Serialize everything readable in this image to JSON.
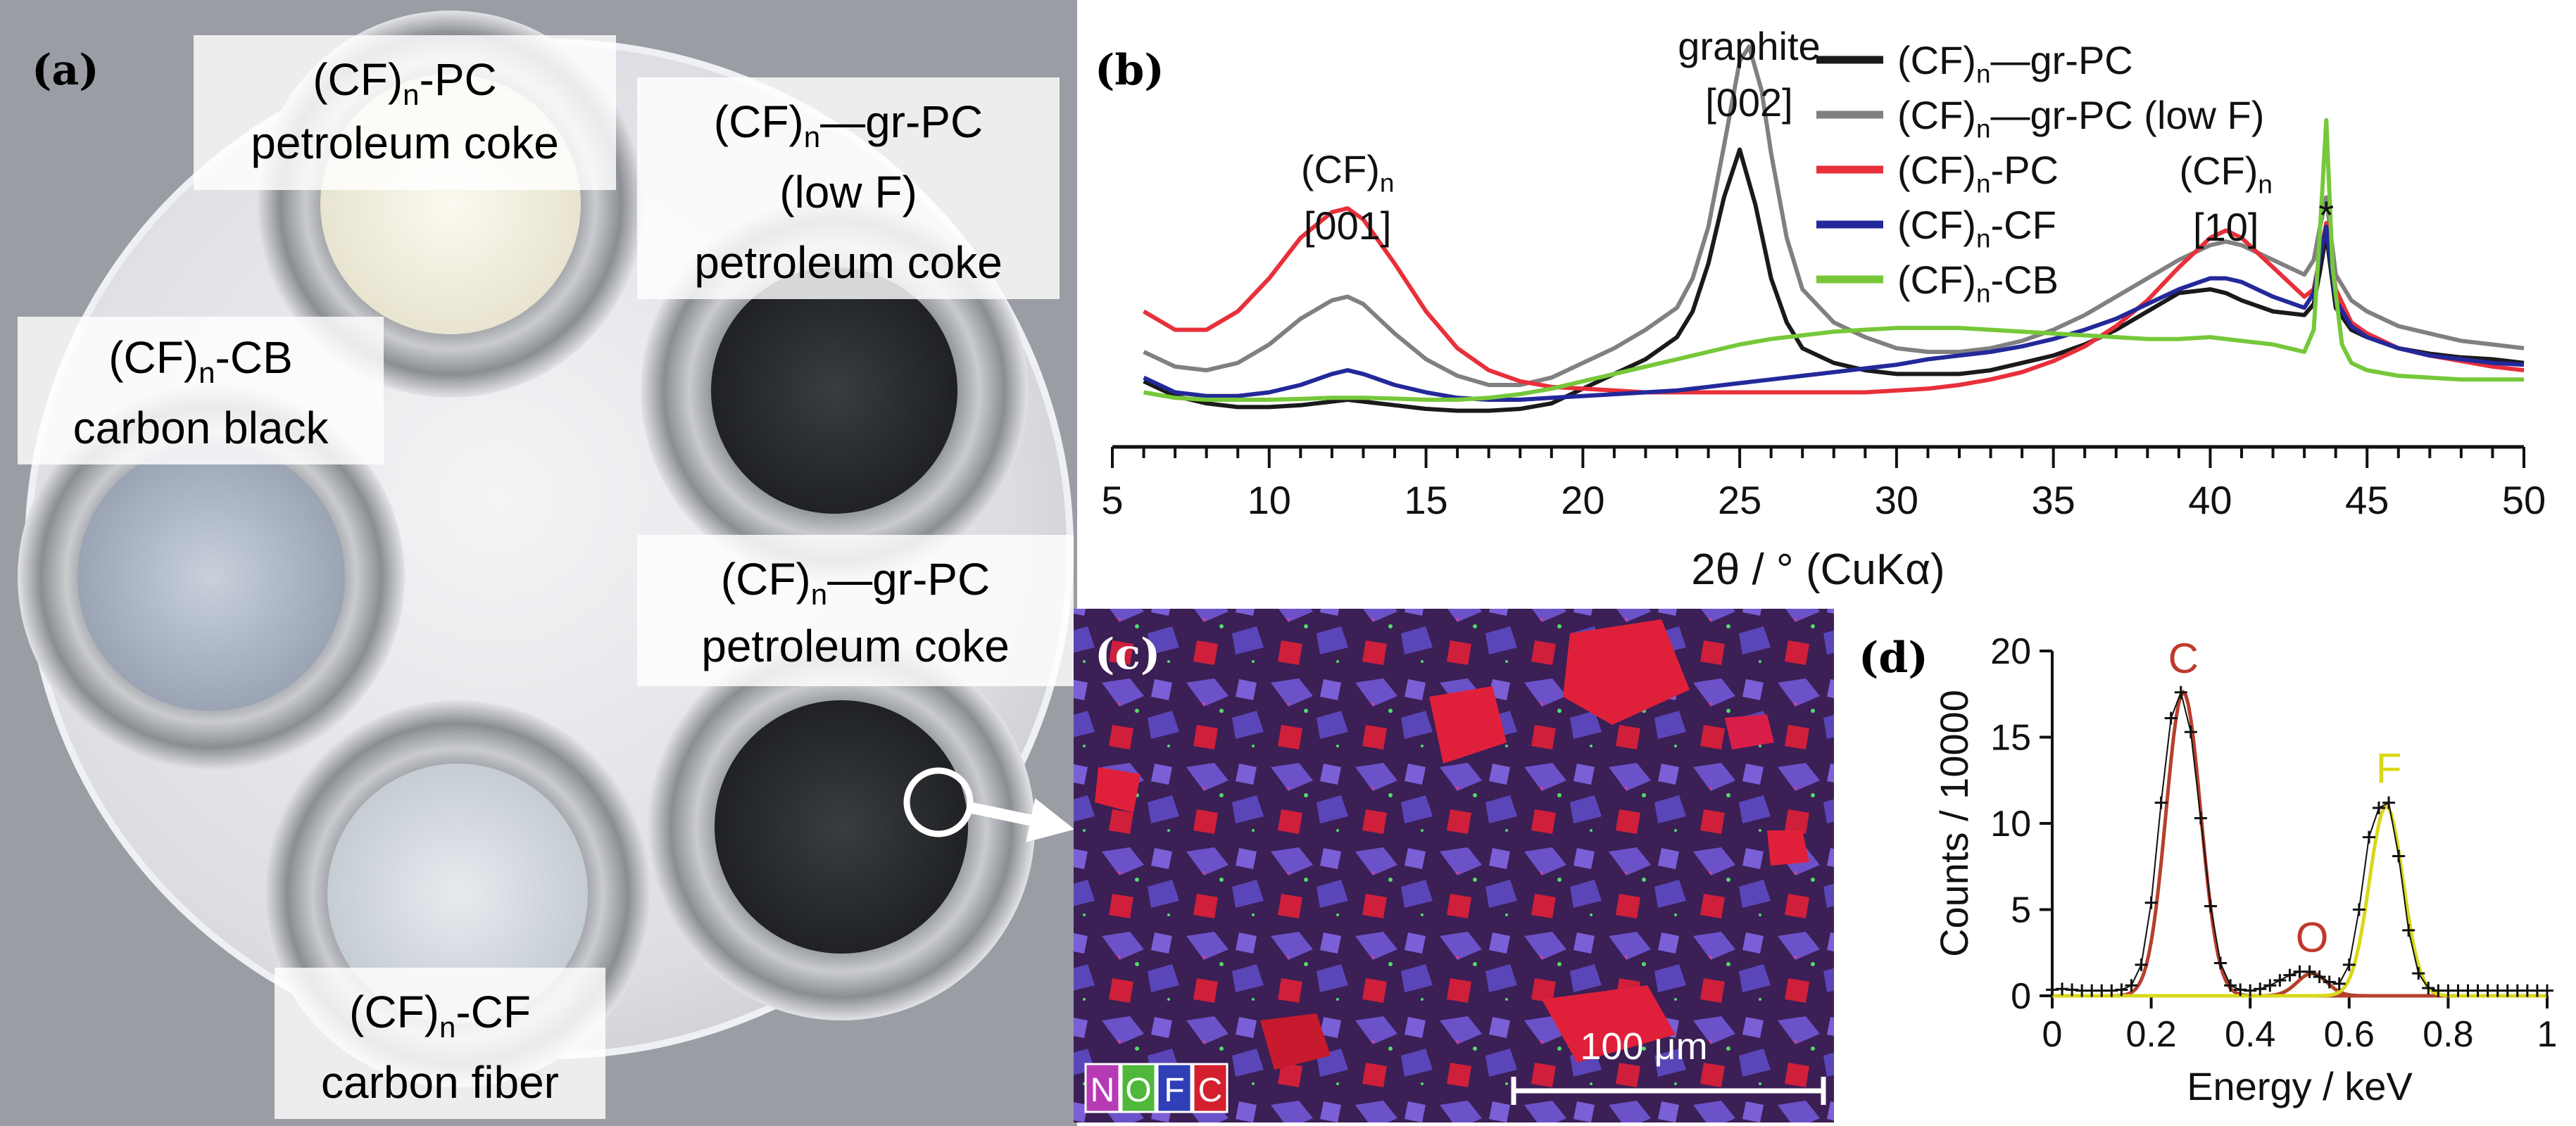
{
  "panels": {
    "a": {
      "letter": "(a)",
      "labels": [
        {
          "key": "pc",
          "formula": {
            "pre": "(CF)",
            "sub": "n",
            "post": "-PC"
          },
          "lines": [
            "petroleum coke"
          ]
        },
        {
          "key": "grlow",
          "formula": {
            "pre": "(CF)",
            "sub": "n",
            "post": "—gr-PC"
          },
          "lines": [
            "(low F)",
            "petroleum coke"
          ]
        },
        {
          "key": "cb",
          "formula": {
            "pre": "(CF)",
            "sub": "n",
            "post": "-CB"
          },
          "lines": [
            "carbon black"
          ]
        },
        {
          "key": "gr",
          "formula": {
            "pre": "(CF)",
            "sub": "n",
            "post": "—gr-PC"
          },
          "lines": [
            "petroleum coke"
          ]
        },
        {
          "key": "cf",
          "formula": {
            "pre": "(CF)",
            "sub": "n",
            "post": "-CF"
          },
          "lines": [
            "carbon fiber"
          ]
        }
      ]
    },
    "b": {
      "letter": "(b)"
    },
    "c": {
      "letter": "(c)",
      "scalebar": "100 μm",
      "elements": [
        "N",
        "O",
        "F",
        "C"
      ]
    },
    "d": {
      "letter": "(d)"
    }
  },
  "chart_data": [
    {
      "panel": "b",
      "type": "line",
      "xlabel": "2θ / ° (CuKα)",
      "ylabel": "",
      "xlim": [
        5,
        50
      ],
      "xticks": [
        5,
        10,
        15,
        20,
        25,
        30,
        35,
        40,
        45,
        50
      ],
      "yticks_shown": false,
      "legend_position": "top-right",
      "annotations": [
        {
          "text": "(CF)n [001]",
          "top": {
            "pre": "(CF)",
            "sub": "n"
          },
          "bottom": "[001]",
          "at_x": 12.5
        },
        {
          "text": "graphite [002]",
          "top": {
            "pre": "graphite",
            "sub": ""
          },
          "bottom": "[002]",
          "at_x": 25.3
        },
        {
          "text": "(CF)n [10]",
          "top": {
            "pre": "(CF)",
            "sub": "n"
          },
          "bottom": "[10]",
          "at_x": 40.5
        },
        {
          "text": "*",
          "top": {
            "pre": "*",
            "sub": ""
          },
          "bottom": "",
          "at_x": 43.7
        }
      ],
      "series": [
        {
          "name": "(CF)n—gr-PC",
          "legend": {
            "pre": "(CF)",
            "sub": "n",
            "post": "—gr-PC"
          },
          "color": "#1a1a1a",
          "x": [
            6,
            7,
            8,
            9,
            10,
            11,
            12,
            12.5,
            13,
            14,
            15,
            16,
            17,
            18,
            19,
            20,
            21,
            22,
            23,
            23.5,
            24,
            24.5,
            25,
            25.5,
            26,
            26.5,
            27,
            28,
            29,
            30,
            31,
            32,
            33,
            34,
            35,
            36,
            37,
            38,
            39,
            40,
            40.5,
            41,
            42,
            43,
            43.3,
            43.5,
            43.7,
            44,
            44.5,
            45,
            46,
            47,
            48,
            49,
            50
          ],
          "y": [
            1.4,
            1.0,
            0.8,
            0.7,
            0.7,
            0.75,
            0.85,
            0.9,
            0.85,
            0.75,
            0.65,
            0.6,
            0.6,
            0.65,
            0.8,
            1.2,
            1.6,
            2.0,
            2.6,
            3.3,
            4.6,
            6.4,
            7.7,
            6.2,
            4.2,
            3.0,
            2.3,
            1.9,
            1.7,
            1.6,
            1.6,
            1.6,
            1.7,
            1.9,
            2.1,
            2.4,
            2.8,
            3.3,
            3.8,
            3.9,
            3.8,
            3.6,
            3.3,
            3.2,
            3.5,
            4.4,
            5.4,
            3.4,
            2.8,
            2.6,
            2.3,
            2.15,
            2.05,
            2.0,
            1.9
          ]
        },
        {
          "name": "(CF)n—gr-PC (low F)",
          "legend": {
            "pre": "(CF)",
            "sub": "n",
            "post": "—gr-PC (low F)"
          },
          "color": "#808080",
          "x": [
            6,
            7,
            8,
            9,
            10,
            11,
            12,
            12.5,
            13,
            14,
            15,
            16,
            17,
            18,
            19,
            20,
            21,
            22,
            23,
            23.5,
            24,
            24.5,
            25,
            25.3,
            25.7,
            26,
            26.5,
            27,
            28,
            29,
            30,
            31,
            32,
            33,
            34,
            35,
            36,
            37,
            38,
            39,
            40,
            40.5,
            41,
            42,
            43,
            43.3,
            43.5,
            43.7,
            44,
            44.5,
            45,
            46,
            47,
            48,
            49,
            50
          ],
          "y": [
            2.2,
            1.8,
            1.7,
            1.9,
            2.4,
            3.1,
            3.6,
            3.7,
            3.5,
            2.7,
            2.0,
            1.55,
            1.3,
            1.3,
            1.5,
            1.9,
            2.3,
            2.8,
            3.4,
            4.2,
            5.6,
            7.8,
            10.1,
            10.5,
            9.3,
            7.6,
            5.3,
            3.9,
            3.0,
            2.6,
            2.3,
            2.2,
            2.2,
            2.3,
            2.5,
            2.8,
            3.2,
            3.7,
            4.2,
            4.7,
            5.1,
            5.2,
            5.1,
            4.7,
            4.3,
            4.7,
            5.6,
            6.4,
            4.3,
            3.6,
            3.3,
            2.9,
            2.7,
            2.5,
            2.4,
            2.3
          ]
        },
        {
          "name": "(CF)n-PC",
          "legend": {
            "pre": "(CF)",
            "sub": "n",
            "post": "-PC"
          },
          "color": "#e8303a",
          "x": [
            6,
            7,
            8,
            9,
            10,
            11,
            12,
            12.5,
            13,
            14,
            15,
            16,
            17,
            18,
            19,
            20,
            21,
            22,
            23,
            24,
            25,
            26,
            27,
            28,
            29,
            30,
            31,
            32,
            33,
            34,
            35,
            36,
            37,
            38,
            39,
            40,
            40.5,
            41,
            42,
            43,
            43.3,
            43.5,
            43.7,
            44,
            44.5,
            45,
            46,
            47,
            48,
            49,
            50
          ],
          "y": [
            3.3,
            2.8,
            2.8,
            3.3,
            4.2,
            5.3,
            6.0,
            6.1,
            5.8,
            4.6,
            3.3,
            2.3,
            1.7,
            1.4,
            1.25,
            1.2,
            1.15,
            1.1,
            1.1,
            1.1,
            1.1,
            1.1,
            1.1,
            1.1,
            1.1,
            1.15,
            1.2,
            1.3,
            1.45,
            1.65,
            1.95,
            2.35,
            2.9,
            3.6,
            4.5,
            5.3,
            5.5,
            5.3,
            4.5,
            3.7,
            3.9,
            4.8,
            5.7,
            3.9,
            3.0,
            2.7,
            2.3,
            2.1,
            1.95,
            1.8,
            1.7
          ]
        },
        {
          "name": "(CF)n-CF",
          "legend": {
            "pre": "(CF)",
            "sub": "n",
            "post": "-CF"
          },
          "color": "#23289a",
          "x": [
            6,
            7,
            8,
            9,
            10,
            11,
            12,
            12.5,
            13,
            14,
            15,
            16,
            17,
            18,
            19,
            20,
            21,
            22,
            23,
            24,
            25,
            26,
            27,
            28,
            29,
            30,
            31,
            32,
            33,
            34,
            35,
            36,
            37,
            38,
            39,
            40,
            40.5,
            41,
            42,
            43,
            43.3,
            43.5,
            43.7,
            44,
            44.5,
            45,
            46,
            47,
            48,
            49,
            50
          ],
          "y": [
            1.5,
            1.1,
            1.0,
            1.0,
            1.1,
            1.3,
            1.6,
            1.7,
            1.6,
            1.3,
            1.1,
            0.95,
            0.9,
            0.9,
            0.95,
            1.0,
            1.05,
            1.1,
            1.15,
            1.25,
            1.35,
            1.45,
            1.55,
            1.65,
            1.75,
            1.85,
            2.0,
            2.1,
            2.2,
            2.35,
            2.55,
            2.8,
            3.1,
            3.5,
            3.9,
            4.2,
            4.2,
            4.1,
            3.7,
            3.4,
            3.8,
            4.8,
            5.6,
            3.6,
            2.9,
            2.6,
            2.3,
            2.1,
            2.0,
            1.9,
            1.85
          ]
        },
        {
          "name": "(CF)n-CB",
          "legend": {
            "pre": "(CF)",
            "sub": "n",
            "post": "-CB"
          },
          "color": "#76c83a",
          "x": [
            6,
            7,
            8,
            9,
            10,
            11,
            12,
            13,
            14,
            15,
            16,
            17,
            18,
            19,
            20,
            21,
            22,
            23,
            24,
            25,
            26,
            27,
            28,
            29,
            30,
            31,
            32,
            33,
            34,
            35,
            36,
            37,
            38,
            39,
            40,
            41,
            42,
            43,
            43.3,
            43.5,
            43.7,
            43.9,
            44.2,
            44.5,
            45,
            46,
            47,
            48,
            49,
            50
          ],
          "y": [
            1.1,
            0.95,
            0.9,
            0.9,
            0.9,
            0.92,
            0.95,
            0.95,
            0.93,
            0.9,
            0.9,
            0.95,
            1.05,
            1.2,
            1.4,
            1.6,
            1.8,
            2.0,
            2.2,
            2.4,
            2.55,
            2.65,
            2.75,
            2.8,
            2.85,
            2.85,
            2.85,
            2.8,
            2.75,
            2.7,
            2.65,
            2.6,
            2.55,
            2.55,
            2.6,
            2.5,
            2.4,
            2.2,
            2.8,
            5.5,
            8.5,
            4.5,
            2.4,
            1.9,
            1.7,
            1.55,
            1.5,
            1.45,
            1.45,
            1.45
          ]
        }
      ]
    },
    {
      "panel": "d",
      "type": "line",
      "xlabel": "Energy / keV",
      "ylabel": "Counts / 10000",
      "xlim": [
        0,
        1
      ],
      "ylim": [
        0,
        20
      ],
      "xticks": [
        0,
        0.2,
        0.4,
        0.6,
        0.8,
        1
      ],
      "yticks": [
        0,
        5,
        10,
        15,
        20
      ],
      "peak_labels": [
        {
          "text": "C",
          "x": 0.265,
          "y": 17.6,
          "color": "#c0392b"
        },
        {
          "text": "O",
          "x": 0.525,
          "y": 1.4,
          "color": "#c0392b"
        },
        {
          "text": "F",
          "x": 0.68,
          "y": 11.2,
          "color": "#d8d81a"
        }
      ],
      "series": [
        {
          "name": "",
          "role": "measured spectrum",
          "style": "cross markers",
          "color": "#111111",
          "x": [
            0,
            0.02,
            0.04,
            0.06,
            0.08,
            0.1,
            0.12,
            0.14,
            0.16,
            0.18,
            0.2,
            0.22,
            0.24,
            0.26,
            0.28,
            0.3,
            0.32,
            0.34,
            0.36,
            0.38,
            0.4,
            0.42,
            0.44,
            0.46,
            0.48,
            0.5,
            0.52,
            0.54,
            0.56,
            0.58,
            0.6,
            0.62,
            0.64,
            0.66,
            0.68,
            0.7,
            0.72,
            0.74,
            0.76,
            0.78,
            0.8,
            0.82,
            0.84,
            0.86,
            0.88,
            0.9,
            0.92,
            0.94,
            0.96,
            0.98,
            1.0
          ],
          "y": [
            0.35,
            0.4,
            0.35,
            0.3,
            0.3,
            0.3,
            0.3,
            0.35,
            0.6,
            1.8,
            5.4,
            11.2,
            16.1,
            17.6,
            15.3,
            10.3,
            5.2,
            1.9,
            0.6,
            0.35,
            0.3,
            0.4,
            0.6,
            0.9,
            1.2,
            1.4,
            1.4,
            1.1,
            0.8,
            0.7,
            1.8,
            5.0,
            9.2,
            10.9,
            11.2,
            8.1,
            3.8,
            1.3,
            0.45,
            0.3,
            0.3,
            0.3,
            0.3,
            0.3,
            0.3,
            0.3,
            0.3,
            0.3,
            0.3,
            0.3,
            0.3
          ]
        },
        {
          "name": "",
          "role": "C fit",
          "color": "#b5402d",
          "peak": {
            "center": 0.265,
            "height": 17.6,
            "sigma": 0.035
          }
        },
        {
          "name": "",
          "role": "O fit",
          "color": "#b5402d",
          "peak": {
            "center": 0.525,
            "height": 1.3,
            "sigma": 0.03
          }
        },
        {
          "name": "",
          "role": "F fit",
          "color": "#d8d81a",
          "peak": {
            "center": 0.675,
            "height": 11.0,
            "sigma": 0.034
          }
        }
      ]
    }
  ]
}
